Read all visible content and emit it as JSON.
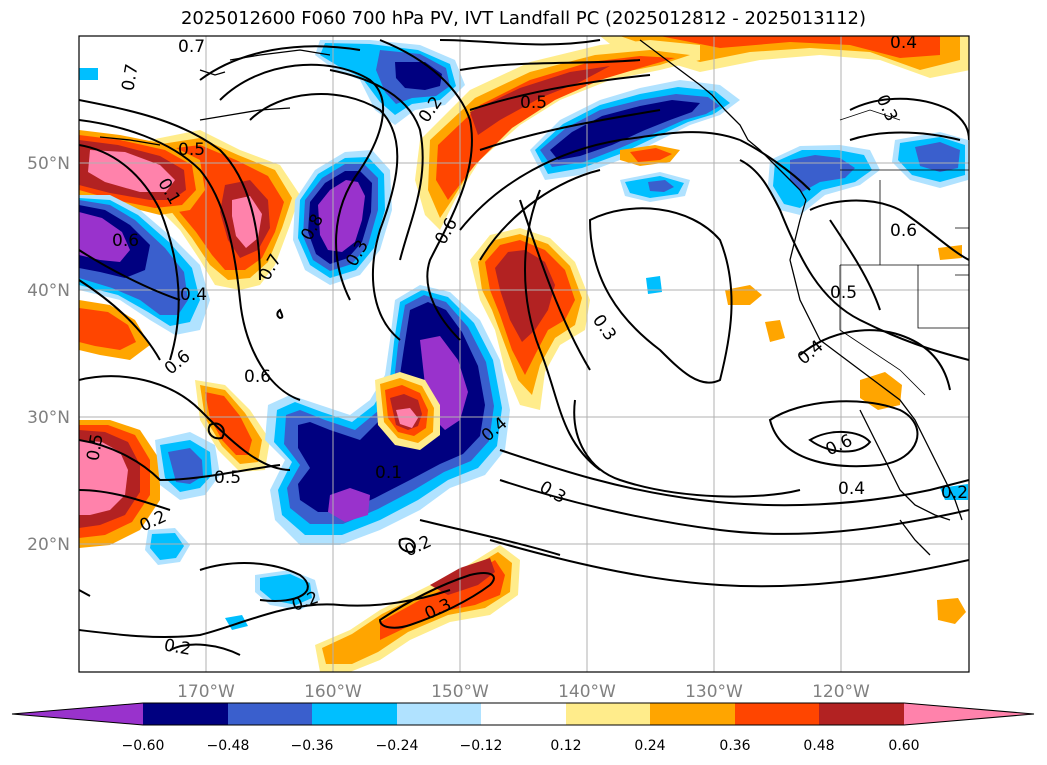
{
  "title": "2025012600 F060 700 hPa PV, IVT Landfall PC (2025012812 - 2025013112)",
  "map": {
    "projection": "lat-lon",
    "lon_ticks": [
      "170°W",
      "160°W",
      "150°W",
      "140°W",
      "130°W",
      "120°W"
    ],
    "lat_ticks": [
      "50°N",
      "40°N",
      "30°N",
      "20°N"
    ],
    "grid": true,
    "coastlines": true,
    "state_borders": true
  },
  "shading": {
    "field": "IVT Landfall PC",
    "levels": [
      "−0.60",
      "−0.48",
      "−0.36",
      "−0.24",
      "−0.12",
      "0.12",
      "0.24",
      "0.36",
      "0.48",
      "0.60"
    ],
    "colors": [
      "#9932cc",
      "#000080",
      "#3a5fcd",
      "#00bfff",
      "#b0e2ff",
      "#ffffff",
      "#ffec8b",
      "#ffa500",
      "#ff4500",
      "#b22222",
      "#ff82ab"
    ],
    "extend": "both"
  },
  "contours": {
    "field": "700 hPa PV",
    "labels": [
      {
        "id": "c1",
        "text": "0.7"
      },
      {
        "id": "c2",
        "text": "0.7"
      },
      {
        "id": "c3",
        "text": "0.5"
      },
      {
        "id": "c4",
        "text": "0.7"
      },
      {
        "id": "c5",
        "text": "0.4"
      },
      {
        "id": "c6",
        "text": "0.6"
      },
      {
        "id": "c7",
        "text": "0.7"
      },
      {
        "id": "c8",
        "text": "0.8"
      },
      {
        "id": "c9",
        "text": "0.6"
      },
      {
        "id": "c10",
        "text": "0.2"
      },
      {
        "id": "c11",
        "text": "0.5"
      },
      {
        "id": "c12",
        "text": "0.6"
      },
      {
        "id": "c13",
        "text": "0.3"
      },
      {
        "id": "c14",
        "text": "0.3"
      },
      {
        "id": "c15",
        "text": "0.4"
      },
      {
        "id": "c16",
        "text": "0.3"
      },
      {
        "id": "c17",
        "text": "0.6"
      },
      {
        "id": "c18",
        "text": "0.5"
      },
      {
        "id": "c19",
        "text": "0.4"
      },
      {
        "id": "c20",
        "text": "0.6"
      },
      {
        "id": "c21",
        "text": "0.4"
      },
      {
        "id": "c22",
        "text": "0.3"
      },
      {
        "id": "c23",
        "text": "0.4"
      },
      {
        "id": "c24",
        "text": "0.2"
      },
      {
        "id": "c25",
        "text": "0.5"
      },
      {
        "id": "c26",
        "text": "0.5"
      },
      {
        "id": "c27",
        "text": "0.2"
      },
      {
        "id": "c28",
        "text": "0.2"
      },
      {
        "id": "c29",
        "text": "0.3"
      },
      {
        "id": "c30",
        "text": "0.2"
      },
      {
        "id": "c31",
        "text": "0.2"
      },
      {
        "id": "c32",
        "text": "0.1"
      },
      {
        "id": "c33",
        "text": "0.1"
      },
      {
        "id": "c34",
        "text": "0.6"
      }
    ]
  }
}
